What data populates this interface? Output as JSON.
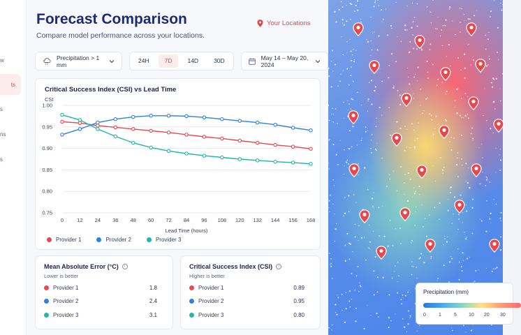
{
  "sidebar": {
    "items": [
      {
        "label": "w"
      },
      {
        "label": "ts"
      },
      {
        "label": "s"
      },
      {
        "label": "ns"
      },
      {
        "label": "s"
      }
    ]
  },
  "header": {
    "title": "Forecast Comparison",
    "subtitle": "Compare model performance across your locations.",
    "locations_link": "Your Locations"
  },
  "controls": {
    "filter": "Precipitation > 1 mm",
    "tabs": [
      {
        "label": "24H",
        "active": false
      },
      {
        "label": "7D",
        "active": true
      },
      {
        "label": "14D",
        "active": false
      },
      {
        "label": "30D",
        "active": false
      }
    ],
    "date_range": "May 14 – May 20, 2024"
  },
  "chart_data": {
    "type": "line",
    "title": "Critical Success Index (CSI) vs Lead Time",
    "xlabel": "Lead Time (hours)",
    "ylabel": "CSI",
    "x": [
      0,
      12,
      24,
      36,
      48,
      60,
      72,
      84,
      96,
      108,
      120,
      132,
      144,
      156,
      168
    ],
    "ylim": [
      0.75,
      1.0
    ],
    "yticks": [
      "1.00",
      "0.95",
      "0.90",
      "0.85",
      "0.80",
      "0.75"
    ],
    "grid": true,
    "legend_position": "bottom",
    "series": [
      {
        "name": "Provider 1",
        "color": "#e5484d",
        "values": [
          0.962,
          0.959,
          0.953,
          0.949,
          0.945,
          0.941,
          0.937,
          0.932,
          0.927,
          0.923,
          0.918,
          0.913,
          0.908,
          0.904,
          0.899
        ]
      },
      {
        "name": "Provider 2",
        "color": "#2f80e0",
        "values": [
          0.932,
          0.945,
          0.96,
          0.968,
          0.973,
          0.976,
          0.976,
          0.975,
          0.972,
          0.968,
          0.964,
          0.96,
          0.955,
          0.948,
          0.942
        ]
      },
      {
        "name": "Provider 3",
        "color": "#22b5a8",
        "values": [
          0.978,
          0.966,
          0.945,
          0.928,
          0.913,
          0.902,
          0.894,
          0.888,
          0.883,
          0.879,
          0.875,
          0.872,
          0.869,
          0.867,
          0.864
        ]
      }
    ]
  },
  "mae_card": {
    "title": "Mean Absolute Error (°C)",
    "subtitle": "Lower is better",
    "rows": [
      {
        "name": "Provider 1",
        "value": "1.8",
        "color": "#e5484d"
      },
      {
        "name": "Provider 2",
        "value": "2.4",
        "color": "#2f80e0"
      },
      {
        "name": "Provider 3",
        "value": "3.1",
        "color": "#22b5a8"
      }
    ]
  },
  "csi_card": {
    "title": "Critical Success Index (CSI)",
    "subtitle": "Higher is better",
    "rows": [
      {
        "name": "Provider 1",
        "value": "0.89",
        "color": "#e5484d"
      },
      {
        "name": "Provider 2",
        "value": "0.95",
        "color": "#2f80e0"
      },
      {
        "name": "Provider 3",
        "value": "0.80",
        "color": "#22b5a8"
      }
    ]
  },
  "map": {
    "legend_title": "Precipitation (mm)",
    "legend_ticks": [
      "0",
      "1",
      "5",
      "10",
      "20",
      "30"
    ],
    "pin_color": "#e5484d",
    "pin_icon": "map-pin-icon"
  }
}
